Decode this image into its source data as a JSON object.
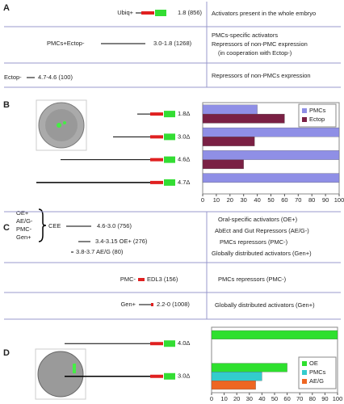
{
  "panel_a": {
    "label": "A",
    "rows": [
      {
        "name": "Ubiq+",
        "range": "1.8 (856)",
        "description": [
          "Activators present in the whole embryo"
        ]
      },
      {
        "name": "PMCs+Ectop-",
        "range": "3.0-1.8 (1268)",
        "description": [
          "PMCs-specific activators",
          "Repressors of non-PMC expression",
          "(in cooperation with Ectop-)"
        ]
      },
      {
        "name": "Ectop-",
        "range": "4.7-4.6 (100)",
        "description": [
          "Repressors of non-PMCs expression"
        ]
      }
    ]
  },
  "panel_b": {
    "label": "B",
    "constructs": [
      "1.8Δ",
      "3.0Δ",
      "4.6Δ",
      "4.7Δ"
    ],
    "chart": {
      "type": "bar",
      "orientation": "horizontal",
      "series": [
        {
          "name": "PMCs",
          "color": "#8f8fe6",
          "values": [
            40,
            100,
            100,
            100
          ]
        },
        {
          "name": "Ectop",
          "color": "#7a2044",
          "values": [
            60,
            38,
            30,
            null
          ]
        }
      ],
      "xlim": [
        0,
        100
      ],
      "xticks": [
        0,
        10,
        20,
        30,
        40,
        50,
        60,
        70,
        80,
        90,
        100
      ]
    }
  },
  "panel_c": {
    "label": "C",
    "groups": [
      "OE+",
      "AE/G-",
      "PMC-",
      "Gen+"
    ],
    "element": "CEE",
    "subregions": [
      "4.6-3.0 (756)",
      "3.4-3.15 OE+ (276)",
      "3.8-3.7 AE/G (80)"
    ],
    "descriptions": [
      "Oral-specific activators (OE+)",
      "AbEct and Gut Repressors (AE/G-)",
      "PMCs repressors (PMC-)",
      "Globally distributed activators (Gen+)"
    ],
    "rows": [
      {
        "name": "PMC-",
        "range": "EDL3 (156)",
        "description": "PMCs repressors (PMC-)"
      },
      {
        "name": "Gen+",
        "range": "2.2-0 (1008)",
        "description": "Globally distributed activators (Gen+)"
      }
    ]
  },
  "panel_d": {
    "label": "D",
    "constructs": [
      "4.0Δ",
      "3.0Δ"
    ],
    "chart": {
      "type": "bar",
      "orientation": "horizontal",
      "series": [
        {
          "name": "OE",
          "color": "#2ee02e",
          "values": [
            100,
            60
          ]
        },
        {
          "name": "PMCs",
          "color": "#33cccc",
          "values": [
            null,
            40
          ]
        },
        {
          "name": "AE/G",
          "color": "#ee6622",
          "values": [
            null,
            35
          ]
        }
      ],
      "xlim": [
        0,
        100
      ],
      "xticks": [
        0,
        10,
        20,
        30,
        40,
        50,
        60,
        70,
        80,
        90,
        100
      ]
    }
  }
}
